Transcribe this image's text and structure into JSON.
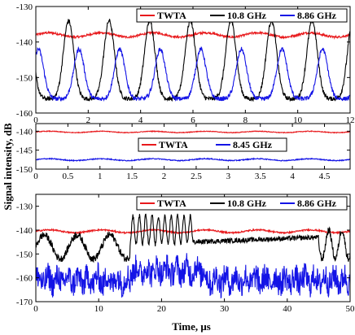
{
  "chart_data": [
    {
      "type": "line",
      "xlim": [
        0,
        12
      ],
      "ylim": [
        -160,
        -130
      ],
      "xticks": [
        0,
        2,
        4,
        6,
        8,
        10,
        12
      ],
      "yticks": [
        -130,
        -140,
        -150,
        -160
      ],
      "grid": false,
      "legend_placement": "top-right",
      "series": [
        {
          "name": "TWTA",
          "color": "#e8191c",
          "kind": "flat",
          "base": -138,
          "amp": 1.0
        },
        {
          "name": "10.8 GHz",
          "color": "#000000",
          "kind": "pulses",
          "first_peak": 1.25,
          "period": 1.55,
          "peak": -134,
          "floor": -156
        },
        {
          "name": "8.86 GHz",
          "color": "#1414e6",
          "kind": "pulses",
          "first_peak": 0.1,
          "period": 1.55,
          "peak": -142,
          "floor": -156
        }
      ]
    },
    {
      "type": "line",
      "xlim": [
        0,
        4.9
      ],
      "ylim": [
        -150,
        -138
      ],
      "xticks": [
        0,
        0.5,
        1,
        1.5,
        2,
        2.5,
        3,
        3.5,
        4,
        4.5
      ],
      "yticks": [
        -140,
        -145,
        -150
      ],
      "grid": false,
      "legend_placement": "center",
      "series": [
        {
          "name": "TWTA",
          "color": "#e8191c",
          "kind": "flat",
          "base": -140.2,
          "amp": 0.3
        },
        {
          "name": "8.45 GHz",
          "color": "#1414e6",
          "kind": "flat",
          "base": -147.5,
          "amp": 0.4
        }
      ]
    },
    {
      "type": "line",
      "xlim": [
        0,
        50
      ],
      "ylim": [
        -170,
        -125
      ],
      "xticks": [
        0,
        10,
        20,
        30,
        40,
        50
      ],
      "yticks": [
        -130,
        -140,
        -150,
        -160,
        -170
      ],
      "xlabel": "Time, μs",
      "grid": false,
      "legend_placement": "top-right",
      "series": [
        {
          "name": "TWTA",
          "color": "#e8191c",
          "kind": "flat",
          "base": -140.5,
          "amp": 1.0
        },
        {
          "name": "10.8 GHz",
          "color": "#000000",
          "kind": "bursty",
          "base": -146,
          "amp": 5
        },
        {
          "name": "8.86 GHz",
          "color": "#1414e6",
          "kind": "noisy",
          "base": -161,
          "amp": 5
        }
      ]
    }
  ],
  "ylabel": "Signal intensity, dB"
}
